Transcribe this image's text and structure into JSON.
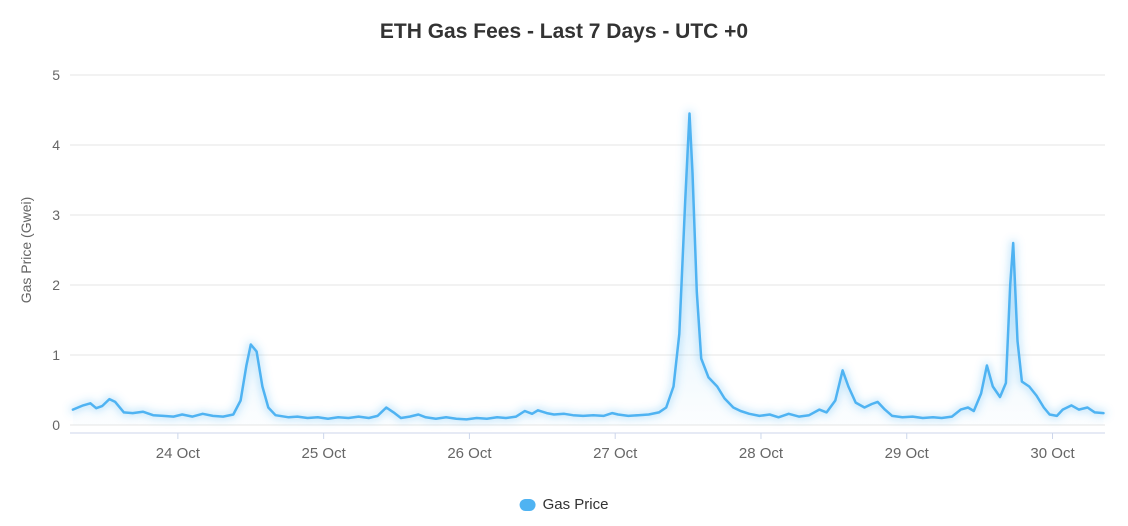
{
  "chart_data": {
    "type": "line",
    "title": "ETH Gas Fees - Last 7 Days - UTC +0",
    "xlabel": "",
    "ylabel": "Gas Price (Gwei)",
    "ylim": [
      0,
      5
    ],
    "yticks": [
      0,
      1,
      2,
      3,
      4,
      5
    ],
    "xlim_days": [
      23.26,
      30.36
    ],
    "xticks": [
      {
        "day": 24,
        "label": "24 Oct"
      },
      {
        "day": 25,
        "label": "25 Oct"
      },
      {
        "day": 26,
        "label": "26 Oct"
      },
      {
        "day": 27,
        "label": "27 Oct"
      },
      {
        "day": 28,
        "label": "28 Oct"
      },
      {
        "day": 29,
        "label": "29 Oct"
      },
      {
        "day": 30,
        "label": "30 Oct"
      }
    ],
    "grid": true,
    "legend_position": "bottom",
    "colors": {
      "line": "#4FB3F2",
      "grid": "#e6e6e6",
      "axis": "#ccd6eb",
      "tick_text": "#666666",
      "title_text": "#333333",
      "background": "#ffffff"
    },
    "series": [
      {
        "name": "Gas Price",
        "color": "#4FB3F2",
        "points": [
          [
            23.28,
            0.22
          ],
          [
            23.35,
            0.28
          ],
          [
            23.4,
            0.31
          ],
          [
            23.44,
            0.24
          ],
          [
            23.48,
            0.27
          ],
          [
            23.53,
            0.37
          ],
          [
            23.57,
            0.33
          ],
          [
            23.63,
            0.18
          ],
          [
            23.69,
            0.17
          ],
          [
            23.76,
            0.19
          ],
          [
            23.83,
            0.14
          ],
          [
            23.9,
            0.13
          ],
          [
            23.97,
            0.12
          ],
          [
            24.03,
            0.15
          ],
          [
            24.1,
            0.12
          ],
          [
            24.17,
            0.16
          ],
          [
            24.24,
            0.13
          ],
          [
            24.31,
            0.12
          ],
          [
            24.38,
            0.15
          ],
          [
            24.43,
            0.35
          ],
          [
            24.47,
            0.85
          ],
          [
            24.5,
            1.15
          ],
          [
            24.54,
            1.05
          ],
          [
            24.58,
            0.55
          ],
          [
            24.62,
            0.25
          ],
          [
            24.67,
            0.14
          ],
          [
            24.76,
            0.11
          ],
          [
            24.82,
            0.12
          ],
          [
            24.89,
            0.1
          ],
          [
            24.96,
            0.11
          ],
          [
            25.03,
            0.09
          ],
          [
            25.1,
            0.11
          ],
          [
            25.17,
            0.1
          ],
          [
            25.24,
            0.12
          ],
          [
            25.31,
            0.1
          ],
          [
            25.37,
            0.13
          ],
          [
            25.43,
            0.25
          ],
          [
            25.48,
            0.18
          ],
          [
            25.53,
            0.1
          ],
          [
            25.59,
            0.12
          ],
          [
            25.65,
            0.15
          ],
          [
            25.7,
            0.11
          ],
          [
            25.77,
            0.09
          ],
          [
            25.84,
            0.11
          ],
          [
            25.91,
            0.09
          ],
          [
            25.98,
            0.08
          ],
          [
            26.05,
            0.1
          ],
          [
            26.12,
            0.09
          ],
          [
            26.19,
            0.11
          ],
          [
            26.25,
            0.1
          ],
          [
            26.32,
            0.12
          ],
          [
            26.38,
            0.2
          ],
          [
            26.43,
            0.16
          ],
          [
            26.47,
            0.21
          ],
          [
            26.53,
            0.17
          ],
          [
            26.58,
            0.15
          ],
          [
            26.65,
            0.16
          ],
          [
            26.71,
            0.14
          ],
          [
            26.78,
            0.13
          ],
          [
            26.85,
            0.14
          ],
          [
            26.92,
            0.13
          ],
          [
            26.98,
            0.17
          ],
          [
            27.02,
            0.15
          ],
          [
            27.09,
            0.13
          ],
          [
            27.16,
            0.14
          ],
          [
            27.23,
            0.15
          ],
          [
            27.3,
            0.18
          ],
          [
            27.35,
            0.25
          ],
          [
            27.4,
            0.55
          ],
          [
            27.44,
            1.3
          ],
          [
            27.48,
            3.2
          ],
          [
            27.51,
            4.45
          ],
          [
            27.53,
            3.6
          ],
          [
            27.56,
            1.9
          ],
          [
            27.59,
            0.95
          ],
          [
            27.64,
            0.68
          ],
          [
            27.7,
            0.55
          ],
          [
            27.75,
            0.38
          ],
          [
            27.81,
            0.25
          ],
          [
            27.86,
            0.2
          ],
          [
            27.92,
            0.16
          ],
          [
            27.99,
            0.13
          ],
          [
            28.06,
            0.15
          ],
          [
            28.12,
            0.11
          ],
          [
            28.19,
            0.16
          ],
          [
            28.26,
            0.12
          ],
          [
            28.33,
            0.14
          ],
          [
            28.4,
            0.22
          ],
          [
            28.45,
            0.18
          ],
          [
            28.51,
            0.35
          ],
          [
            28.56,
            0.78
          ],
          [
            28.6,
            0.55
          ],
          [
            28.65,
            0.32
          ],
          [
            28.71,
            0.25
          ],
          [
            28.76,
            0.3
          ],
          [
            28.8,
            0.33
          ],
          [
            28.85,
            0.22
          ],
          [
            28.9,
            0.13
          ],
          [
            28.97,
            0.11
          ],
          [
            29.04,
            0.12
          ],
          [
            29.11,
            0.1
          ],
          [
            29.18,
            0.11
          ],
          [
            29.24,
            0.1
          ],
          [
            29.31,
            0.12
          ],
          [
            29.37,
            0.22
          ],
          [
            29.42,
            0.25
          ],
          [
            29.46,
            0.2
          ],
          [
            29.51,
            0.45
          ],
          [
            29.55,
            0.85
          ],
          [
            29.59,
            0.55
          ],
          [
            29.64,
            0.4
          ],
          [
            29.68,
            0.6
          ],
          [
            29.71,
            2.0
          ],
          [
            29.73,
            2.6
          ],
          [
            29.76,
            1.2
          ],
          [
            29.79,
            0.62
          ],
          [
            29.84,
            0.55
          ],
          [
            29.89,
            0.42
          ],
          [
            29.94,
            0.25
          ],
          [
            29.98,
            0.15
          ],
          [
            30.03,
            0.13
          ],
          [
            30.07,
            0.22
          ],
          [
            30.13,
            0.28
          ],
          [
            30.18,
            0.22
          ],
          [
            30.24,
            0.25
          ],
          [
            30.29,
            0.18
          ],
          [
            30.35,
            0.17
          ]
        ]
      }
    ]
  }
}
